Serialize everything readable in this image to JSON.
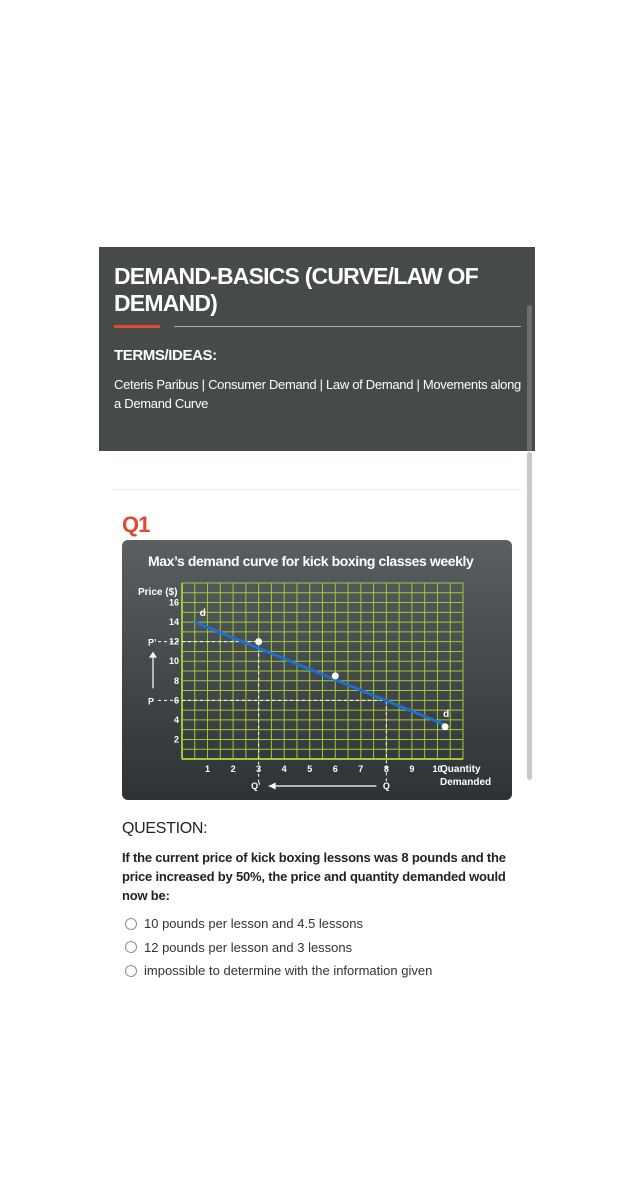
{
  "header": {
    "title": "DEMAND-BASICS (CURVE/LAW OF DEMAND)",
    "terms_heading": "TERMS/IDEAS:",
    "terms_text": "Ceteris Paribus | Consumer Demand | Law of Demand | Movements along a Demand Curve"
  },
  "question_number": "Q1",
  "chart_data": {
    "type": "line",
    "title": "Max’s demand curve for kick boxing classes weekly",
    "ylabel": "Price ($)",
    "xlabel": "Quantity Demanded",
    "x_ticks": [
      "1",
      "2",
      "3",
      "4",
      "5",
      "6",
      "7",
      "8",
      "9",
      "10"
    ],
    "y_ticks": [
      "2",
      "4",
      "6",
      "8",
      "10",
      "12",
      "14",
      "16"
    ],
    "xlim": [
      0,
      11
    ],
    "ylim": [
      0,
      18
    ],
    "grid": true,
    "line_color": "#1f6fd1",
    "grid_color": "#9ccc34",
    "series": [
      {
        "name": "d",
        "x": [
          0.5,
          10.3
        ],
        "y": [
          14,
          3.5
        ]
      }
    ],
    "points": [
      {
        "x": 3,
        "y": 12
      },
      {
        "x": 6,
        "y": 8.5
      },
      {
        "x": 10.3,
        "y": 3.3
      }
    ],
    "curve_labels": [
      "d",
      "d"
    ],
    "reference_lines": [
      {
        "y": 12,
        "x": 3,
        "label": "P’"
      },
      {
        "y": 6,
        "x": 8,
        "label": "P"
      }
    ],
    "axis_markers": {
      "q_prime": "Q’",
      "q": "Q"
    }
  },
  "question": {
    "heading": "QUESTION:",
    "text": "If the current price of kick boxing lessons was 8 pounds and the price increased by 50%, the price and quantity demanded would now be:",
    "options": [
      "10 pounds per lesson and 4.5 lessons",
      "12 pounds per lesson and 3 lessons",
      "impossible to determine with the information given"
    ]
  }
}
